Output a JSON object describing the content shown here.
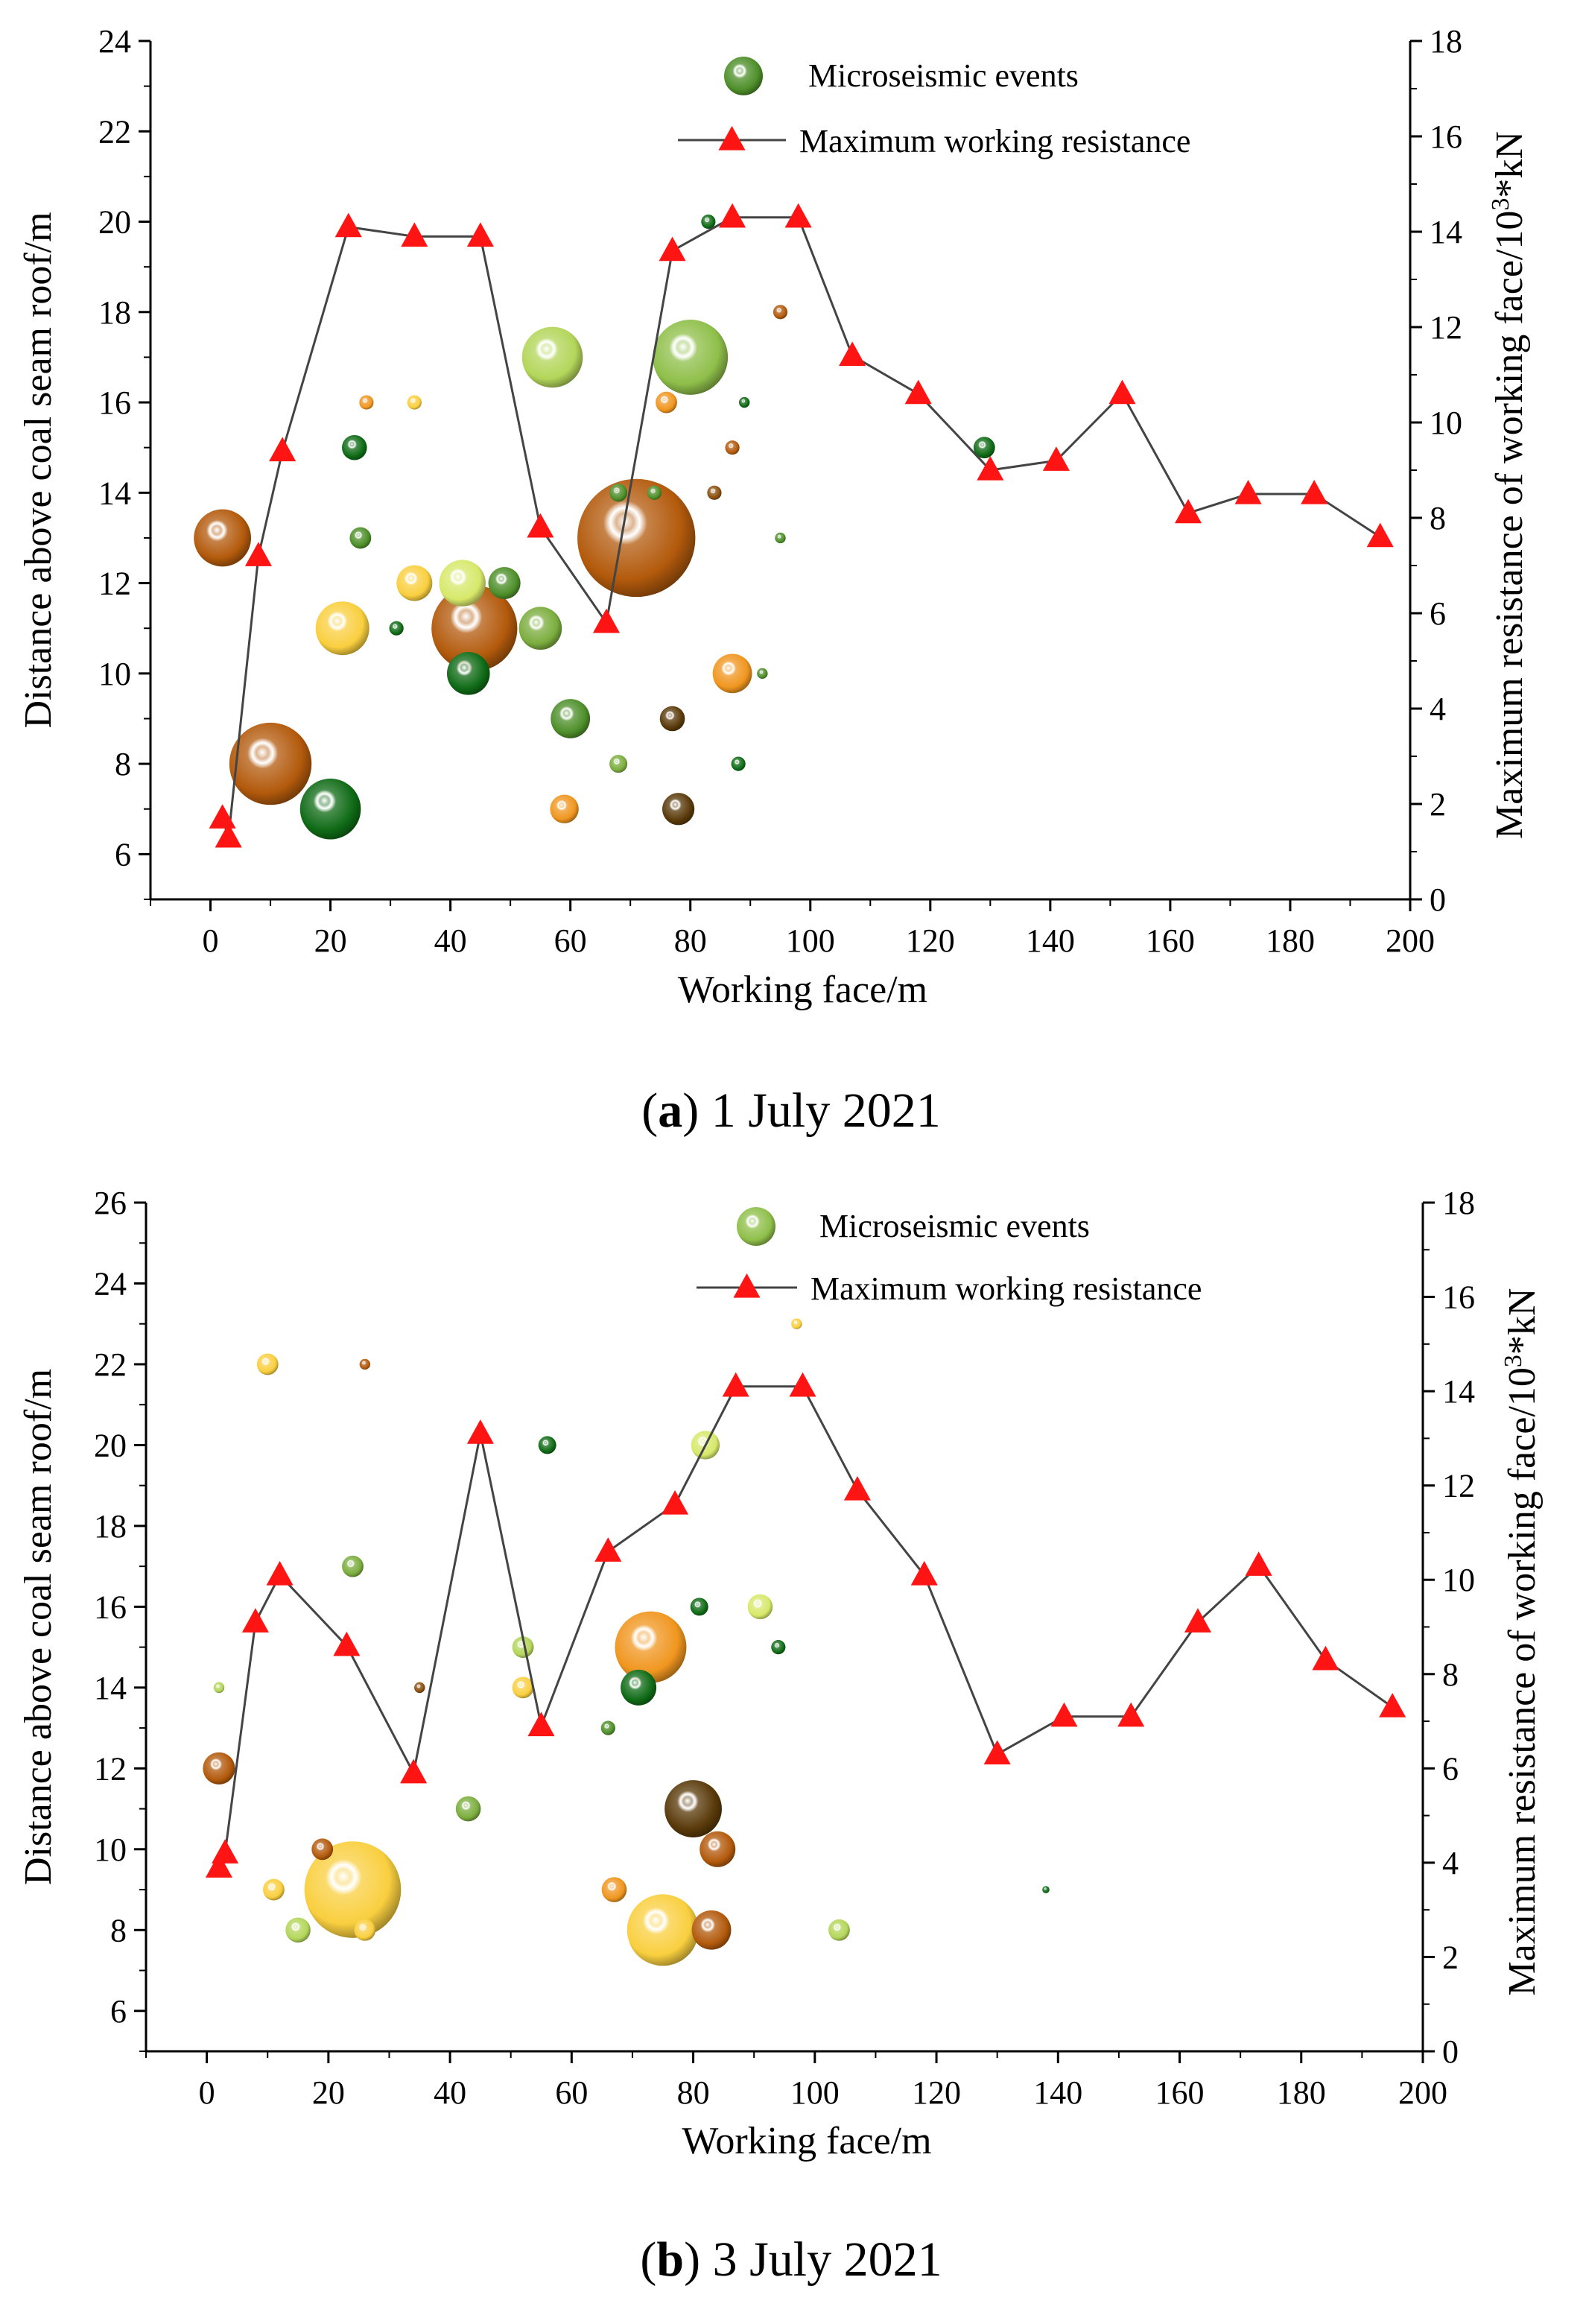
{
  "chart_data": [
    {
      "type": "scatter",
      "panel": "a",
      "caption_letter": "a",
      "caption_text": "1 July 2021",
      "xlabel": "Working face/m",
      "ylabel_left": "Distance above coal seam roof/m",
      "ylabel_right": "Maximum resistance of working face/10³*kN",
      "xlim": [
        -10,
        200
      ],
      "ylim_left": [
        5,
        24
      ],
      "ylim_right": [
        0,
        18
      ],
      "x_ticks": [
        "0",
        "20",
        "40",
        "60",
        "80",
        "100",
        "120",
        "140",
        "160",
        "180",
        "200"
      ],
      "y_left_ticks": [
        "6",
        "8",
        "10",
        "12",
        "14",
        "16",
        "18",
        "20",
        "22",
        "24"
      ],
      "y_right_ticks": [
        "0",
        "2",
        "4",
        "6",
        "8",
        "10",
        "12",
        "14",
        "16",
        "18"
      ],
      "legend": {
        "scatter": "Microseismic events",
        "line": "Maximum working resistance",
        "position": "top-right"
      },
      "line_series": {
        "name": "Maximum working resistance",
        "x": [
          2,
          3,
          8,
          12,
          23,
          34,
          45,
          55,
          66,
          77,
          87,
          98,
          107,
          118,
          130,
          141,
          152,
          163,
          173,
          184,
          195
        ],
        "y": [
          1.7,
          1.3,
          7.2,
          9.4,
          14.1,
          13.9,
          13.9,
          7.8,
          5.8,
          13.6,
          14.3,
          14.3,
          11.4,
          10.6,
          9.0,
          9.2,
          10.6,
          8.1,
          8.5,
          8.5,
          7.6
        ]
      },
      "scatter_series": {
        "name": "Microseismic events",
        "points": [
          {
            "x": 2,
            "y": 13,
            "size": 1.6,
            "color": "#b35a0c"
          },
          {
            "x": 10,
            "y": 8,
            "size": 2.3,
            "color": "#b35a0c"
          },
          {
            "x": 20,
            "y": 7,
            "size": 1.7,
            "color": "#0f6b16"
          },
          {
            "x": 22,
            "y": 11,
            "size": 1.5,
            "color": "#f9cf3f"
          },
          {
            "x": 24,
            "y": 15,
            "size": 0.7,
            "color": "#0f6b16"
          },
          {
            "x": 25,
            "y": 13,
            "size": 0.6,
            "color": "#4e8f2a"
          },
          {
            "x": 26,
            "y": 16,
            "size": 0.4,
            "color": "#f0961f"
          },
          {
            "x": 31,
            "y": 11,
            "size": 0.4,
            "color": "#0f6b16"
          },
          {
            "x": 34,
            "y": 12,
            "size": 1.0,
            "color": "#f9cf3f"
          },
          {
            "x": 34,
            "y": 16,
            "size": 0.4,
            "color": "#f9cf3f"
          },
          {
            "x": 42,
            "y": 12,
            "size": 1.3,
            "color": "#d7e86a"
          },
          {
            "x": 43,
            "y": 10,
            "size": 1.2,
            "color": "#0f6b16"
          },
          {
            "x": 44,
            "y": 11,
            "size": 2.4,
            "color": "#b35a0c"
          },
          {
            "x": 49,
            "y": 12,
            "size": 0.9,
            "color": "#4e8f2a"
          },
          {
            "x": 55,
            "y": 11,
            "size": 1.2,
            "color": "#7bad3e"
          },
          {
            "x": 57,
            "y": 17,
            "size": 1.7,
            "color": "#b3d65a"
          },
          {
            "x": 60,
            "y": 9,
            "size": 1.1,
            "color": "#4e8f2a"
          },
          {
            "x": 59,
            "y": 7,
            "size": 0.8,
            "color": "#f0961f"
          },
          {
            "x": 68,
            "y": 14,
            "size": 0.5,
            "color": "#4e8f2a"
          },
          {
            "x": 71,
            "y": 13,
            "size": 3.3,
            "color": "#b35a0c"
          },
          {
            "x": 68,
            "y": 8,
            "size": 0.5,
            "color": "#7bad3e"
          },
          {
            "x": 74,
            "y": 14,
            "size": 0.4,
            "color": "#4e8f2a"
          },
          {
            "x": 76,
            "y": 16,
            "size": 0.6,
            "color": "#f0961f"
          },
          {
            "x": 77,
            "y": 9,
            "size": 0.7,
            "color": "#5a3a0a"
          },
          {
            "x": 78,
            "y": 7,
            "size": 0.9,
            "color": "#5a3a0a"
          },
          {
            "x": 80,
            "y": 17,
            "size": 2.1,
            "color": "#8fbf4a"
          },
          {
            "x": 83,
            "y": 20,
            "size": 0.4,
            "color": "#0f6b16"
          },
          {
            "x": 84,
            "y": 14,
            "size": 0.4,
            "color": "#8a4f0f"
          },
          {
            "x": 87,
            "y": 10,
            "size": 1.1,
            "color": "#f0961f"
          },
          {
            "x": 87,
            "y": 15,
            "size": 0.4,
            "color": "#b35a0c"
          },
          {
            "x": 88,
            "y": 8,
            "size": 0.4,
            "color": "#0f6b16"
          },
          {
            "x": 89,
            "y": 16,
            "size": 0.3,
            "color": "#0f6b16"
          },
          {
            "x": 92,
            "y": 10,
            "size": 0.3,
            "color": "#4e8f2a"
          },
          {
            "x": 95,
            "y": 13,
            "size": 0.3,
            "color": "#4e8f2a"
          },
          {
            "x": 95,
            "y": 18,
            "size": 0.4,
            "color": "#b35a0c"
          },
          {
            "x": 129,
            "y": 15,
            "size": 0.6,
            "color": "#0f6b16"
          }
        ]
      }
    },
    {
      "type": "scatter",
      "panel": "b",
      "caption_letter": "b",
      "caption_text": "3 July 2021",
      "xlabel": "Working face/m",
      "ylabel_left": "Distance above coal seam roof/m",
      "ylabel_right": "Maximum resistance of working face/10³*kN",
      "xlim": [
        -10,
        200
      ],
      "ylim_left": [
        5,
        26
      ],
      "ylim_right": [
        0,
        18
      ],
      "x_ticks": [
        "0",
        "20",
        "40",
        "60",
        "80",
        "100",
        "120",
        "140",
        "160",
        "180",
        "200"
      ],
      "y_left_ticks": [
        "6",
        "8",
        "10",
        "12",
        "14",
        "16",
        "18",
        "20",
        "22",
        "24",
        "26"
      ],
      "y_right_ticks": [
        "0",
        "2",
        "4",
        "6",
        "8",
        "10",
        "12",
        "14",
        "16",
        "18"
      ],
      "legend": {
        "scatter": "Microseismic events",
        "line": "Maximum working resistance",
        "position": "top-right"
      },
      "line_series": {
        "name": "Maximum working resistance",
        "x": [
          2,
          3,
          8,
          12,
          23,
          34,
          45,
          55,
          66,
          77,
          87,
          98,
          107,
          118,
          130,
          141,
          152,
          163,
          173,
          184,
          195
        ],
        "y": [
          3.9,
          4.2,
          9.1,
          10.1,
          8.6,
          5.9,
          13.1,
          6.9,
          10.6,
          11.6,
          14.1,
          14.1,
          11.9,
          10.1,
          6.3,
          7.1,
          7.1,
          9.1,
          10.3,
          8.3,
          7.3
        ]
      },
      "scatter_series": {
        "name": "Microseismic events",
        "points": [
          {
            "x": 2,
            "y": 12,
            "size": 0.9,
            "color": "#b35a0c"
          },
          {
            "x": 2,
            "y": 14,
            "size": 0.3,
            "color": "#b3d65a"
          },
          {
            "x": 10,
            "y": 22,
            "size": 0.6,
            "color": "#f9cf3f"
          },
          {
            "x": 11,
            "y": 9,
            "size": 0.6,
            "color": "#f9cf3f"
          },
          {
            "x": 15,
            "y": 8,
            "size": 0.7,
            "color": "#b3d65a"
          },
          {
            "x": 19,
            "y": 10,
            "size": 0.6,
            "color": "#b35a0c"
          },
          {
            "x": 24,
            "y": 9,
            "size": 2.7,
            "color": "#f9cf3f"
          },
          {
            "x": 24,
            "y": 17,
            "size": 0.6,
            "color": "#7bad3e"
          },
          {
            "x": 26,
            "y": 8,
            "size": 0.6,
            "color": "#f9cf3f"
          },
          {
            "x": 26,
            "y": 22,
            "size": 0.3,
            "color": "#b35a0c"
          },
          {
            "x": 35,
            "y": 14,
            "size": 0.3,
            "color": "#8a4f0f"
          },
          {
            "x": 43,
            "y": 11,
            "size": 0.7,
            "color": "#7bad3e"
          },
          {
            "x": 52,
            "y": 14,
            "size": 0.6,
            "color": "#f9cf3f"
          },
          {
            "x": 52,
            "y": 15,
            "size": 0.6,
            "color": "#b3d65a"
          },
          {
            "x": 56,
            "y": 20,
            "size": 0.5,
            "color": "#0f6b16"
          },
          {
            "x": 66,
            "y": 13,
            "size": 0.4,
            "color": "#4e8f2a"
          },
          {
            "x": 67,
            "y": 9,
            "size": 0.7,
            "color": "#f0961f"
          },
          {
            "x": 71,
            "y": 14,
            "size": 1.0,
            "color": "#0f6b16"
          },
          {
            "x": 73,
            "y": 15,
            "size": 2.0,
            "color": "#f0961f"
          },
          {
            "x": 75,
            "y": 8,
            "size": 2.0,
            "color": "#f9cf3f"
          },
          {
            "x": 80,
            "y": 11,
            "size": 1.6,
            "color": "#5a3a0a"
          },
          {
            "x": 81,
            "y": 16,
            "size": 0.5,
            "color": "#0f6b16"
          },
          {
            "x": 82,
            "y": 20,
            "size": 0.8,
            "color": "#d7e86a"
          },
          {
            "x": 83,
            "y": 8,
            "size": 1.1,
            "color": "#b35a0c"
          },
          {
            "x": 84,
            "y": 10,
            "size": 1.0,
            "color": "#b35a0c"
          },
          {
            "x": 91,
            "y": 16,
            "size": 0.7,
            "color": "#d7e86a"
          },
          {
            "x": 94,
            "y": 15,
            "size": 0.4,
            "color": "#0f6b16"
          },
          {
            "x": 97,
            "y": 23,
            "size": 0.3,
            "color": "#f9cf3f"
          },
          {
            "x": 104,
            "y": 8,
            "size": 0.6,
            "color": "#b3d65a"
          },
          {
            "x": 138,
            "y": 9,
            "size": 0.2,
            "color": "#0f6b16"
          }
        ]
      }
    }
  ]
}
